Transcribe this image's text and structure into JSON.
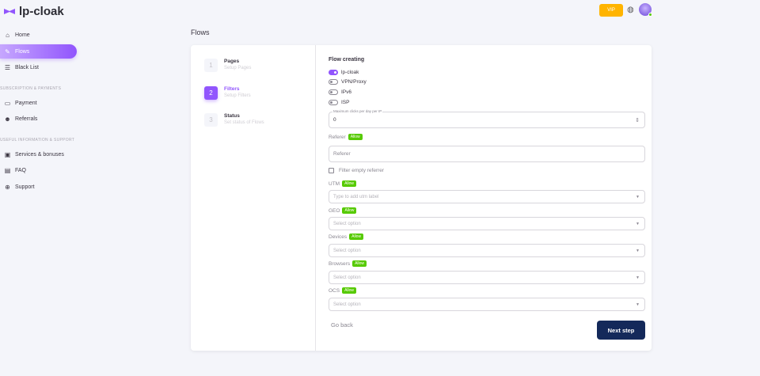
{
  "app": {
    "name": "lp-cloak"
  },
  "sidebar": {
    "items": [
      {
        "label": "Home",
        "icon": "home-icon"
      },
      {
        "label": "Flows",
        "icon": "flows-icon"
      },
      {
        "label": "Black List",
        "icon": "list-icon"
      },
      {
        "label": "Payment",
        "icon": "card-icon"
      },
      {
        "label": "Referrals",
        "icon": "referrals-icon"
      },
      {
        "label": "Services & bonuses",
        "icon": "gift-icon"
      },
      {
        "label": "FAQ",
        "icon": "faq-icon"
      },
      {
        "label": "Support",
        "icon": "support-icon"
      }
    ],
    "sections": [
      "SUBSCRIPTION & PAYMENTS",
      "USEFUL INFORMATION & SUPPORT"
    ]
  },
  "header": {
    "vip_label": "VIP"
  },
  "page": {
    "title": "Flows"
  },
  "steps": [
    {
      "num": "1",
      "title": "Pages",
      "subtitle": "Setup Pages"
    },
    {
      "num": "2",
      "title": "Filters",
      "subtitle": "Setup Filters"
    },
    {
      "num": "3",
      "title": "Status",
      "subtitle": "Set status of Flows"
    }
  ],
  "form": {
    "heading": "Flow creating",
    "toggles": [
      {
        "label": "lp-cloak",
        "on": true
      },
      {
        "label": "VPN/Proxy",
        "on": false
      },
      {
        "label": "IPv6",
        "on": false
      },
      {
        "label": "ISP",
        "on": false
      }
    ],
    "max_clicks": {
      "legend": "Maximum clicks per day per IP",
      "value": "0"
    },
    "referer": {
      "label": "Referer",
      "badge": "Allow",
      "placeholder": "Referer"
    },
    "filter_empty": {
      "label": "Filter empty referrer",
      "checked": false
    },
    "utm": {
      "label": "UTM",
      "badge": "Allow",
      "placeholder": "Type to add utm label"
    },
    "geo": {
      "label": "GEO",
      "badge": "Allow",
      "placeholder": "Select option"
    },
    "devices": {
      "label": "Devices",
      "badge": "Allow",
      "placeholder": "Select option"
    },
    "browsers": {
      "label": "Browsers",
      "badge": "Allow",
      "placeholder": "Select option"
    },
    "ocs": {
      "label": "OCS",
      "badge": "Allow",
      "placeholder": "Select option"
    },
    "go_back": "Go back",
    "next": "Next step"
  },
  "colors": {
    "accent": "#9155fd",
    "allow": "#56ca00",
    "primary_button": "#14295a",
    "vip": "#ffb400"
  }
}
